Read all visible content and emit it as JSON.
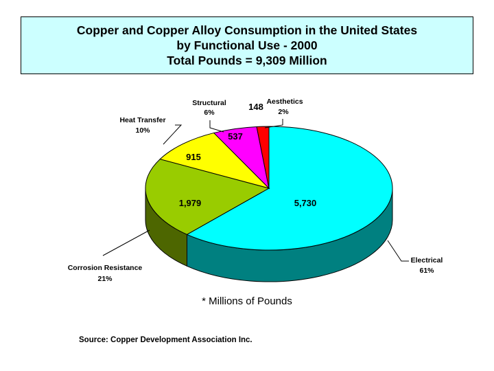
{
  "chart_data": {
    "type": "pie",
    "title_lines": [
      "Copper and Copper Alloy Consumption in the United States",
      "by Functional Use - 2000",
      "Total Pounds = 9,309 Million"
    ],
    "slices": [
      {
        "category": "Electrical",
        "value": 5730,
        "value_label": "5,730",
        "percent_label": "61%",
        "color": "#00ffff",
        "side_color": "#008080"
      },
      {
        "category": "Corrosion Resistance",
        "value": 1979,
        "value_label": "1,979",
        "percent_label": "21%",
        "color": "#99cc00",
        "side_color": "#4d6600"
      },
      {
        "category": "Heat Transfer",
        "value": 915,
        "value_label": "915",
        "percent_label": "10%",
        "color": "#ffff00",
        "side_color": "#808000"
      },
      {
        "category": "Structural",
        "value": 537,
        "value_label": "537",
        "percent_label": "6%",
        "color": "#ff00ff",
        "side_color": "#800080"
      },
      {
        "category": "Aesthetics",
        "value": 148,
        "value_label": "148",
        "percent_label": "2%",
        "color": "#ff0000",
        "side_color": "#800000"
      }
    ],
    "unit_note": "* Millions of Pounds",
    "source": "Source: Copper Development Association Inc."
  }
}
